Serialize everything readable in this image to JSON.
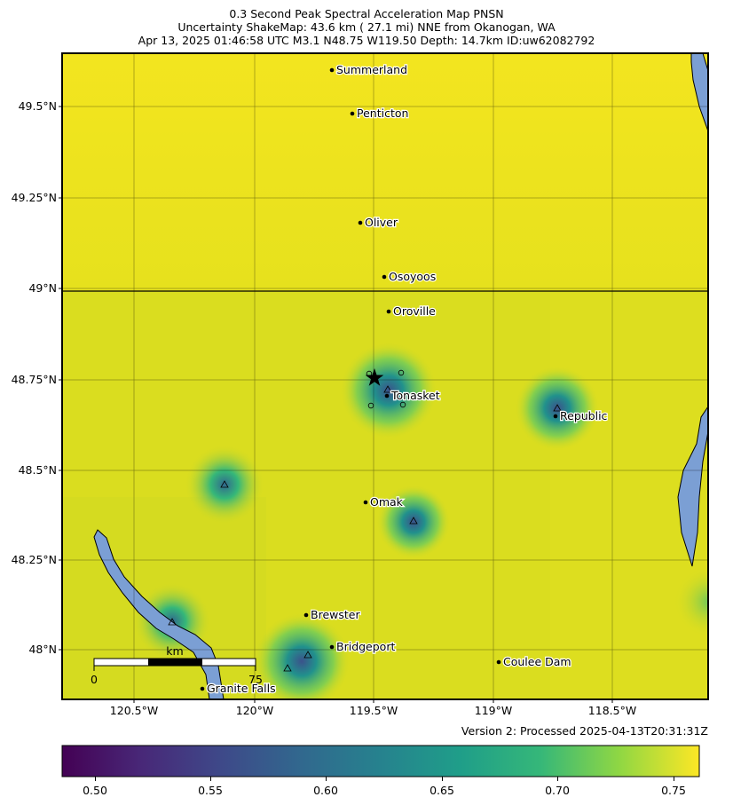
{
  "title": {
    "line1": "0.3 Second Peak Spectral Acceleration Map PNSN",
    "line2": "Uncertainty ShakeMap: 43.6 km (  27.1 mi) NNE from Okanogan, WA",
    "line3": "Apr 13, 2025 01:46:58 UTC M3.1 N48.75 W119.50 Depth: 14.7km ID:uw62082792"
  },
  "lat_ticks": [
    "49.5°N",
    "49.25°N",
    "49°N",
    "48.75°N",
    "48.5°N",
    "48.25°N",
    "48°N"
  ],
  "lon_ticks": [
    "120.5°W",
    "120°W",
    "119.5°W",
    "119°W",
    "118.5°W"
  ],
  "cities": [
    {
      "name": "Summerland"
    },
    {
      "name": "Penticton"
    },
    {
      "name": "Oliver"
    },
    {
      "name": "Osoyoos"
    },
    {
      "name": "Oroville"
    },
    {
      "name": "Tonasket"
    },
    {
      "name": "Republic"
    },
    {
      "name": "Omak"
    },
    {
      "name": "Brewster"
    },
    {
      "name": "Bridgeport"
    },
    {
      "name": "Coulee Dam"
    },
    {
      "name": "Granite Falls"
    }
  ],
  "scale_bar": {
    "unit": "km",
    "start": "0",
    "end": "75"
  },
  "version": "Version 2: Processed 2025-04-13T20:31:31Z",
  "colorbar": {
    "ticks": [
      "0.50",
      "0.55",
      "0.60",
      "0.65",
      "0.70",
      "0.75"
    ],
    "colors": [
      "#440154",
      "#3b528b",
      "#21918c",
      "#5ec962",
      "#fde725"
    ]
  },
  "colors": {
    "water": "#7b9fd4",
    "base": "#d9dc1e",
    "high": "#f2e31e"
  }
}
